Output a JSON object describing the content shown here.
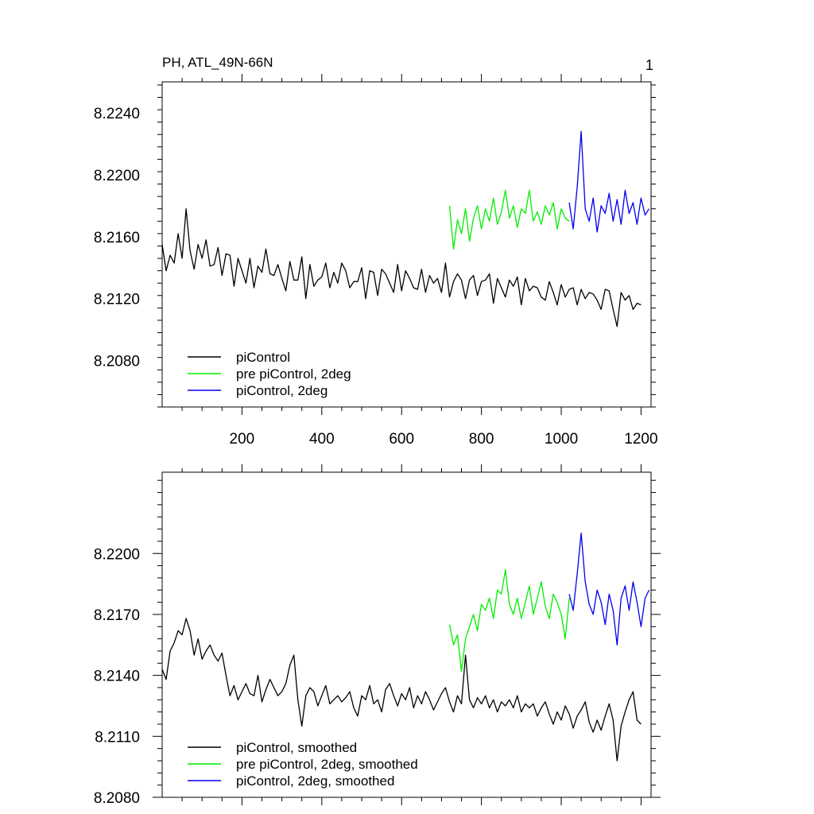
{
  "page_number": "1",
  "chart_data": [
    {
      "type": "line",
      "title": "PH, ATL_49N-66N",
      "xlabel": "",
      "ylabel": "",
      "xlim": [
        0,
        1225
      ],
      "ylim": [
        8.205,
        8.226
      ],
      "xticks": [
        200,
        400,
        600,
        800,
        1000,
        1200
      ],
      "xtick_labels": [
        "200",
        "400",
        "600",
        "800",
        "1000",
        "1200"
      ],
      "yticks": [
        8.208,
        8.212,
        8.216,
        8.22,
        8.224
      ],
      "ytick_labels": [
        "8.2080",
        "8.2120",
        "8.2160",
        "8.2200",
        "8.2240"
      ],
      "legend_position": "bottom-left",
      "series": [
        {
          "name": "piControl",
          "color": "#000000",
          "x_start": 0,
          "x_end": 1200,
          "x_step": 10,
          "values": [
            8.2155,
            8.2138,
            8.2148,
            8.2143,
            8.2162,
            8.2146,
            8.2178,
            8.2151,
            8.2139,
            8.2155,
            8.2146,
            8.2158,
            8.2141,
            8.2142,
            8.2153,
            8.2135,
            8.2149,
            8.2148,
            8.2128,
            8.2146,
            8.2138,
            8.213,
            8.2146,
            8.2127,
            8.2141,
            8.2137,
            8.2152,
            8.2136,
            8.2135,
            8.2142,
            8.2133,
            8.2125,
            8.2144,
            8.2132,
            8.2132,
            8.2147,
            8.212,
            8.2142,
            8.2128,
            8.2132,
            8.2134,
            8.2143,
            8.2127,
            8.2137,
            8.213,
            8.2143,
            8.2138,
            8.2127,
            8.2131,
            8.2131,
            8.214,
            8.212,
            8.2138,
            8.2137,
            8.2122,
            8.2139,
            8.2136,
            8.213,
            8.2124,
            8.2142,
            8.2125,
            8.2138,
            8.2133,
            8.2127,
            8.2126,
            8.2139,
            8.2124,
            8.2135,
            8.213,
            8.2133,
            8.2124,
            8.2143,
            8.2121,
            8.2131,
            8.2136,
            8.2132,
            8.212,
            8.2132,
            8.2135,
            8.2122,
            8.2131,
            8.2132,
            8.2136,
            8.2117,
            8.2133,
            8.2127,
            8.2121,
            8.2132,
            8.2128,
            8.2134,
            8.2116,
            8.2133,
            8.2125,
            8.2128,
            8.2127,
            8.2121,
            8.2119,
            8.2131,
            8.2124,
            8.2116,
            8.2129,
            8.2121,
            8.2126,
            8.2127,
            8.2116,
            8.2126,
            8.212,
            8.2124,
            8.2123,
            8.2119,
            8.2113,
            8.2126,
            8.2125,
            8.2113,
            8.2102,
            8.2124,
            8.2119,
            8.2122,
            8.2113,
            8.2117,
            8.2116
          ],
          "legend_label": "piControl"
        },
        {
          "name": "pre piControl, 2deg",
          "color": "#00ee00",
          "x_start": 720,
          "x_end": 1020,
          "x_step": 10,
          "values": [
            8.218,
            8.2152,
            8.2171,
            8.2162,
            8.2178,
            8.2157,
            8.2172,
            8.218,
            8.2165,
            8.2178,
            8.217,
            8.2185,
            8.2168,
            8.2176,
            8.219,
            8.2172,
            8.218,
            8.2166,
            8.2178,
            8.2175,
            8.219,
            8.217,
            8.2176,
            8.2168,
            8.218,
            8.2174,
            8.2182,
            8.2165,
            8.2178,
            8.2172,
            8.217
          ],
          "legend_label": "pre piControl, 2deg"
        },
        {
          "name": "piControl, 2deg",
          "color": "#0000ee",
          "x_start": 1020,
          "x_end": 1220,
          "x_step": 10,
          "values": [
            8.2182,
            8.2165,
            8.2192,
            8.2228,
            8.2178,
            8.217,
            8.2185,
            8.2163,
            8.218,
            8.2175,
            8.2188,
            8.217,
            8.2184,
            8.2168,
            8.219,
            8.2175,
            8.2182,
            8.2168,
            8.2185,
            8.2174,
            8.2178
          ],
          "legend_label": "piControl, 2deg"
        }
      ]
    },
    {
      "type": "line",
      "title": "",
      "xlabel": "",
      "ylabel": "",
      "xlim": [
        0,
        1225
      ],
      "ylim": [
        8.208,
        8.224
      ],
      "xticks": [
        200,
        400,
        600,
        800,
        1000,
        1200
      ],
      "xtick_labels": [],
      "yticks": [
        8.208,
        8.211,
        8.214,
        8.217,
        8.22
      ],
      "ytick_labels": [
        "8.2080",
        "8.2110",
        "8.2140",
        "8.2170",
        "8.2200"
      ],
      "legend_position": "bottom-left",
      "series": [
        {
          "name": "piControl, smoothed",
          "color": "#000000",
          "x_start": 0,
          "x_end": 1200,
          "x_step": 10,
          "values": [
            8.2143,
            8.2138,
            8.2152,
            8.2156,
            8.2162,
            8.216,
            8.2168,
            8.2162,
            8.215,
            8.2158,
            8.2148,
            8.2152,
            8.2155,
            8.215,
            8.2147,
            8.2151,
            8.214,
            8.213,
            8.2135,
            8.2128,
            8.2132,
            8.2136,
            8.2131,
            8.213,
            8.214,
            8.2127,
            8.2133,
            8.2138,
            8.2134,
            8.213,
            8.2132,
            8.2136,
            8.2145,
            8.215,
            8.2128,
            8.2115,
            8.213,
            8.2134,
            8.2132,
            8.2125,
            8.213,
            8.2135,
            8.2126,
            8.2128,
            8.213,
            8.2127,
            8.2129,
            8.2132,
            8.2124,
            8.212,
            8.213,
            8.2128,
            8.2135,
            8.2126,
            8.2128,
            8.2122,
            8.2133,
            8.2136,
            8.213,
            8.2125,
            8.2131,
            8.2128,
            8.2134,
            8.2124,
            8.213,
            8.2126,
            8.2132,
            8.2128,
            8.2123,
            8.2127,
            8.2131,
            8.2134,
            8.2127,
            8.2122,
            8.213,
            8.2126,
            8.215,
            8.2128,
            8.2124,
            8.2129,
            8.2126,
            8.213,
            8.2124,
            8.2128,
            8.2122,
            8.2127,
            8.2125,
            8.2128,
            8.2124,
            8.213,
            8.2122,
            8.2126,
            8.2124,
            8.2126,
            8.212,
            8.2124,
            8.2127,
            8.2121,
            8.2116,
            8.2122,
            8.2118,
            8.2125,
            8.2121,
            8.2114,
            8.212,
            8.2123,
            8.2127,
            8.2117,
            8.2112,
            8.2118,
            8.2113,
            8.212,
            8.2126,
            8.2118,
            8.2098,
            8.2115,
            8.2122,
            8.2128,
            8.2132,
            8.2118,
            8.2116
          ],
          "legend_label": "piControl, smoothed"
        },
        {
          "name": "pre piControl, 2deg, smoothed",
          "color": "#00ee00",
          "x_start": 720,
          "x_end": 1020,
          "x_step": 10,
          "values": [
            8.2165,
            8.2155,
            8.216,
            8.2142,
            8.2158,
            8.2164,
            8.217,
            8.2162,
            8.2175,
            8.2172,
            8.2178,
            8.2168,
            8.2182,
            8.218,
            8.2192,
            8.2175,
            8.217,
            8.2178,
            8.2168,
            8.2176,
            8.2184,
            8.217,
            8.2178,
            8.2186,
            8.2174,
            8.2168,
            8.218,
            8.2176,
            8.217,
            8.2158,
            8.2178
          ],
          "legend_label": "pre piControl, 2deg, smoothed"
        },
        {
          "name": "piControl, 2deg, smoothed",
          "color": "#0000ee",
          "x_start": 1020,
          "x_end": 1220,
          "x_step": 10,
          "values": [
            8.218,
            8.2172,
            8.219,
            8.221,
            8.2186,
            8.2175,
            8.217,
            8.2182,
            8.2176,
            8.2165,
            8.218,
            8.2172,
            8.2155,
            8.2178,
            8.2184,
            8.2172,
            8.2186,
            8.2176,
            8.2164,
            8.2178,
            8.2182
          ],
          "legend_label": "piControl, 2deg, smoothed"
        }
      ]
    }
  ]
}
